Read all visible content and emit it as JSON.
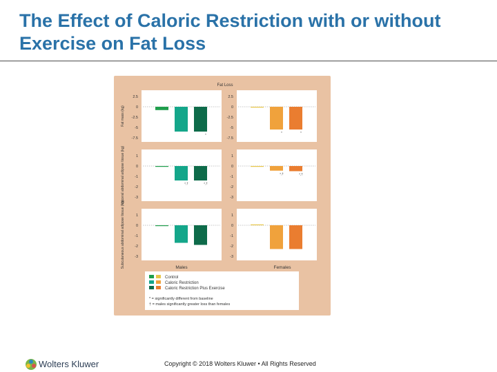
{
  "slide": {
    "title": "The Effect of Caloric Restriction with or without Exercise on Fat Loss",
    "footer": "Copyright © 2018 Wolters Kluwer • All Rights Reserved",
    "brand": "Wolters Kluwer",
    "brand_icon": "wolters-kluwer-logo-icon"
  },
  "colors": {
    "title": "#2a72a8",
    "panel_bg": "#e9c2a3",
    "male": [
      "#1f9e4c",
      "#14a68a",
      "#0e6b4a"
    ],
    "female": [
      "#e8c64a",
      "#f0a23c",
      "#ea7d30"
    ]
  },
  "chart_data": {
    "type": "bar",
    "title": "Fat Loss",
    "groups": [
      "Males",
      "Females"
    ],
    "series_names": [
      "Control",
      "Caloric Restriction",
      "Caloric Restriction Plus Exercise"
    ],
    "legend_notes": [
      "* = significantly different from baseline",
      "† = males significantly greater loss than females"
    ],
    "rows": [
      {
        "ylabel": "Fat mass (kg)",
        "ylim": [
          -7.5,
          2.5
        ],
        "yticks": [
          "2.5",
          "0",
          "-2.5",
          "-5",
          "-7.5"
        ],
        "males": [
          -0.8,
          -6.0,
          -6.0
        ],
        "females": [
          -0.2,
          -5.5,
          -5.5
        ],
        "male_marks": [
          "",
          "",
          "*"
        ],
        "female_marks": [
          "",
          "*",
          "*"
        ]
      },
      {
        "ylabel": "Visceral abdominal adipose tissue (kg)",
        "ylim": [
          -3,
          1
        ],
        "yticks": [
          "1",
          "0",
          "-1",
          "-2",
          "-3"
        ],
        "males": [
          -0.02,
          -1.4,
          -1.4
        ],
        "females": [
          -0.05,
          -0.45,
          -0.5
        ],
        "male_marks": [
          "",
          "*,†",
          "*,†"
        ],
        "female_marks": [
          "",
          "*,†",
          "*,†"
        ]
      },
      {
        "ylabel": "Subcutaneous abdominal adipose tissue (kg)",
        "ylim": [
          -3,
          1
        ],
        "yticks": [
          "1",
          "0",
          "-1",
          "-2",
          "-3"
        ],
        "males": [
          -0.05,
          -1.7,
          -1.9
        ],
        "females": [
          0.0,
          -2.3,
          -2.3
        ],
        "male_marks": [
          "",
          "",
          ""
        ],
        "female_marks": [
          "",
          "",
          ""
        ]
      }
    ]
  }
}
